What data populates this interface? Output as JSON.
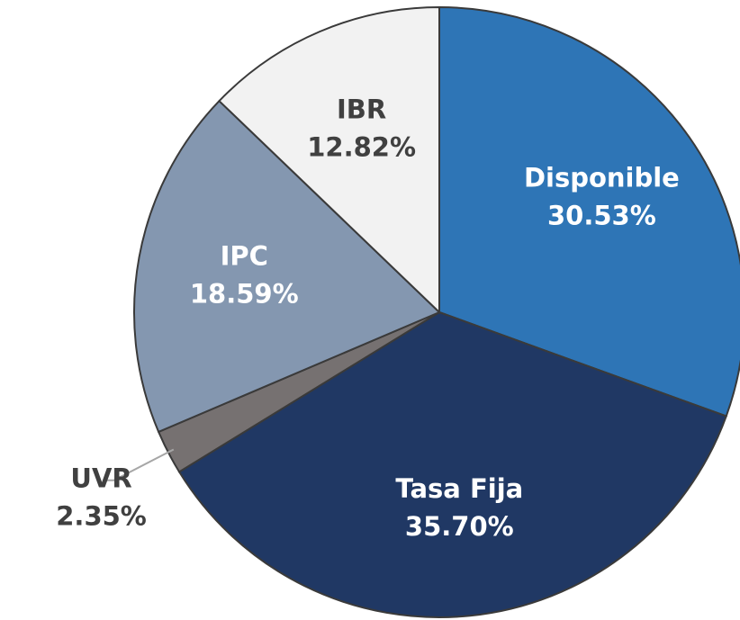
{
  "chart_data": {
    "type": "pie",
    "categories": [
      "Disponible",
      "Tasa Fija",
      "UVR",
      "IPC",
      "IBR"
    ],
    "values": [
      30.53,
      35.7,
      2.35,
      18.59,
      12.82
    ],
    "value_labels": [
      "30.53%",
      "35.70%",
      "2.35%",
      "18.59%",
      "12.82%"
    ],
    "colors": [
      "#2e75b6",
      "#203864",
      "#767171",
      "#8497b0",
      "#f2f2f2"
    ],
    "label_colors": [
      "#ffffff",
      "#ffffff",
      "#404040",
      "#ffffff",
      "#404040"
    ]
  }
}
